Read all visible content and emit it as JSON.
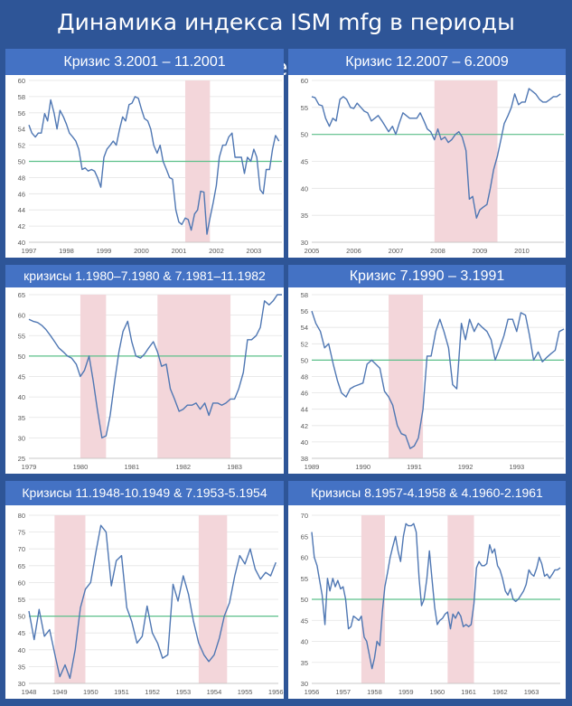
{
  "title": "Динамика индекса ISM mfg в периоды рецессии",
  "colors": {
    "background": "#2e5597",
    "header": "#4472c4",
    "line": "#4f77b3",
    "ref_line": "#5cc08a",
    "recession": "#f3d6da",
    "grid": "#e3e3e3",
    "tick": "#595959"
  },
  "chart_data": [
    {
      "id": "c1",
      "type": "line",
      "title": "Кризис 3.2001 – 11.2001",
      "xlim": [
        1997,
        2003.75
      ],
      "ylim": [
        40,
        60
      ],
      "yticks": [
        40,
        42,
        44,
        46,
        48,
        50,
        52,
        54,
        56,
        58,
        60
      ],
      "xticks": [
        "1997",
        "1998",
        "1999",
        "2000",
        "2001",
        "2002",
        "2003"
      ],
      "reference_line": 50,
      "recession_bands": [
        [
          2001.17,
          2001.83
        ]
      ],
      "x": [
        1997.0,
        1997.08,
        1997.17,
        1997.25,
        1997.33,
        1997.42,
        1997.5,
        1997.58,
        1997.67,
        1997.75,
        1997.83,
        1997.92,
        1998.0,
        1998.08,
        1998.17,
        1998.25,
        1998.33,
        1998.42,
        1998.5,
        1998.58,
        1998.67,
        1998.75,
        1998.83,
        1998.92,
        1999.0,
        1999.08,
        1999.17,
        1999.25,
        1999.33,
        1999.42,
        1999.5,
        1999.58,
        1999.67,
        1999.75,
        1999.83,
        1999.92,
        2000.0,
        2000.08,
        2000.17,
        2000.25,
        2000.33,
        2000.42,
        2000.5,
        2000.58,
        2000.67,
        2000.75,
        2000.83,
        2000.92,
        2001.0,
        2001.08,
        2001.17,
        2001.25,
        2001.33,
        2001.42,
        2001.5,
        2001.58,
        2001.67,
        2001.75,
        2001.83,
        2001.92,
        2002.0,
        2002.08,
        2002.17,
        2002.25,
        2002.33,
        2002.42,
        2002.5,
        2002.58,
        2002.67,
        2002.75,
        2002.83,
        2002.92,
        2003.0,
        2003.08,
        2003.17,
        2003.25,
        2003.33,
        2003.42,
        2003.5,
        2003.58,
        2003.67
      ],
      "y": [
        54.5,
        53.5,
        53.0,
        53.5,
        53.5,
        55.9,
        55.0,
        57.6,
        56.0,
        54.0,
        56.3,
        55.5,
        54.6,
        53.5,
        53.0,
        52.5,
        51.5,
        49.0,
        49.2,
        48.8,
        49.0,
        48.8,
        48.0,
        46.8,
        50.5,
        51.5,
        52.0,
        52.5,
        52.0,
        54.0,
        55.5,
        55.0,
        57.0,
        57.2,
        58.0,
        57.8,
        56.5,
        55.3,
        55.0,
        54.0,
        52.0,
        51.0,
        52.0,
        50.0,
        49.0,
        48.0,
        47.8,
        44.0,
        42.5,
        42.2,
        43.0,
        42.8,
        41.5,
        43.5,
        44.0,
        46.3,
        46.2,
        41.0,
        43.0,
        45.0,
        47.0,
        50.5,
        52.0,
        52.0,
        53.0,
        53.5,
        50.5,
        50.5,
        50.5,
        48.5,
        50.5,
        50.0,
        51.5,
        50.5,
        46.5,
        46.0,
        49.0,
        49.0,
        51.5,
        53.2,
        52.5
      ]
    },
    {
      "id": "c2",
      "type": "line",
      "title": "Кризис 12.2007 – 6.2009",
      "xlim": [
        2005,
        2011
      ],
      "ylim": [
        30,
        60
      ],
      "yticks": [
        30,
        35,
        40,
        45,
        50,
        55,
        60
      ],
      "xticks": [
        "2005",
        "2006",
        "2007",
        "2008",
        "2009",
        "2010"
      ],
      "reference_line": 50,
      "recession_bands": [
        [
          2007.92,
          2009.42
        ]
      ],
      "x": [
        2005.0,
        2005.08,
        2005.17,
        2005.25,
        2005.33,
        2005.42,
        2005.5,
        2005.58,
        2005.67,
        2005.75,
        2005.83,
        2005.92,
        2006.0,
        2006.08,
        2006.17,
        2006.25,
        2006.33,
        2006.42,
        2006.5,
        2006.58,
        2006.67,
        2006.75,
        2006.83,
        2006.92,
        2007.0,
        2007.08,
        2007.17,
        2007.25,
        2007.33,
        2007.42,
        2007.5,
        2007.58,
        2007.67,
        2007.75,
        2007.83,
        2007.92,
        2008.0,
        2008.08,
        2008.17,
        2008.25,
        2008.33,
        2008.42,
        2008.5,
        2008.58,
        2008.67,
        2008.75,
        2008.83,
        2008.92,
        2009.0,
        2009.08,
        2009.17,
        2009.25,
        2009.33,
        2009.42,
        2009.5,
        2009.58,
        2009.67,
        2009.75,
        2009.83,
        2009.92,
        2010.0,
        2010.08,
        2010.17,
        2010.25,
        2010.33,
        2010.42,
        2010.5,
        2010.58,
        2010.67,
        2010.75,
        2010.83,
        2010.92
      ],
      "y": [
        57.0,
        56.8,
        55.5,
        55.3,
        53.0,
        51.5,
        53.0,
        52.5,
        56.5,
        57.0,
        56.5,
        55.0,
        54.8,
        55.8,
        55.0,
        54.3,
        54.0,
        52.5,
        53.0,
        53.5,
        52.5,
        51.5,
        50.5,
        51.5,
        50.0,
        52.0,
        54.0,
        53.5,
        53.0,
        53.0,
        53.0,
        54.0,
        52.5,
        51.0,
        50.5,
        49.0,
        51.0,
        49.0,
        49.5,
        48.5,
        49.0,
        50.0,
        50.5,
        49.5,
        47.0,
        38.0,
        38.5,
        34.5,
        36.0,
        36.5,
        37.0,
        40.0,
        43.5,
        46.0,
        49.0,
        52.0,
        53.5,
        55.0,
        57.5,
        55.5,
        56.0,
        56.0,
        58.5,
        58.0,
        57.5,
        56.5,
        56.0,
        56.0,
        56.5,
        57.0,
        57.0,
        57.5
      ]
    },
    {
      "id": "c3",
      "type": "line",
      "title": "кризисы 1.1980–7.1980 & 7.1981–11.1982",
      "xlim": [
        1979,
        1983.92
      ],
      "ylim": [
        25,
        65
      ],
      "yticks": [
        25,
        30,
        35,
        40,
        45,
        50,
        55,
        60,
        65
      ],
      "xticks": [
        "1979",
        "1980",
        "1981",
        "1982",
        "1983"
      ],
      "reference_line": 50,
      "recession_bands": [
        [
          1980.0,
          1980.5
        ],
        [
          1981.5,
          1982.92
        ]
      ],
      "x": [
        1979.0,
        1979.08,
        1979.17,
        1979.25,
        1979.33,
        1979.42,
        1979.5,
        1979.58,
        1979.67,
        1979.75,
        1979.83,
        1979.92,
        1980.0,
        1980.08,
        1980.17,
        1980.25,
        1980.33,
        1980.42,
        1980.5,
        1980.58,
        1980.67,
        1980.75,
        1980.83,
        1980.92,
        1981.0,
        1981.08,
        1981.17,
        1981.25,
        1981.33,
        1981.42,
        1981.5,
        1981.58,
        1981.67,
        1981.75,
        1981.83,
        1981.92,
        1982.0,
        1982.08,
        1982.17,
        1982.25,
        1982.33,
        1982.42,
        1982.5,
        1982.58,
        1982.67,
        1982.75,
        1982.83,
        1982.92,
        1983.0,
        1983.08,
        1983.17,
        1983.25,
        1983.33,
        1983.42,
        1983.5,
        1983.58,
        1983.67,
        1983.75,
        1983.83,
        1983.92
      ],
      "y": [
        59.0,
        58.5,
        58.2,
        57.5,
        56.5,
        55.0,
        53.5,
        52.0,
        51.0,
        50.0,
        49.5,
        48.0,
        45.0,
        46.5,
        50.0,
        44.0,
        37.0,
        30.0,
        30.5,
        35.5,
        44.0,
        51.0,
        56.0,
        58.5,
        53.5,
        50.0,
        49.5,
        50.5,
        52.0,
        53.5,
        51.0,
        47.5,
        48.0,
        42.0,
        39.5,
        36.5,
        37.0,
        38.0,
        38.0,
        38.5,
        37.0,
        38.5,
        35.5,
        38.5,
        38.5,
        38.0,
        38.5,
        39.5,
        39.5,
        42.0,
        46.0,
        54.0,
        54.0,
        55.0,
        57.0,
        63.5,
        62.5,
        63.5,
        65.0,
        65.0
      ]
    },
    {
      "id": "c4",
      "type": "line",
      "title": "Кризис 7.1990 – 3.1991",
      "xlim": [
        1989,
        1993.92
      ],
      "ylim": [
        38,
        58
      ],
      "yticks": [
        38,
        40,
        42,
        44,
        46,
        48,
        50,
        52,
        54,
        56,
        58
      ],
      "xticks": [
        "1989",
        "1990",
        "1991",
        "1992",
        "1993"
      ],
      "reference_line": 50,
      "recession_bands": [
        [
          1990.5,
          1991.17
        ]
      ],
      "x": [
        1989.0,
        1989.08,
        1989.17,
        1989.25,
        1989.33,
        1989.42,
        1989.5,
        1989.58,
        1989.67,
        1989.75,
        1989.83,
        1989.92,
        1990.0,
        1990.08,
        1990.17,
        1990.25,
        1990.33,
        1990.42,
        1990.5,
        1990.58,
        1990.67,
        1990.75,
        1990.83,
        1990.92,
        1991.0,
        1991.08,
        1991.17,
        1991.25,
        1991.33,
        1991.42,
        1991.5,
        1991.58,
        1991.67,
        1991.75,
        1991.83,
        1991.92,
        1992.0,
        1992.08,
        1992.17,
        1992.25,
        1992.33,
        1992.42,
        1992.5,
        1992.58,
        1992.67,
        1992.75,
        1992.83,
        1992.92,
        1993.0,
        1993.08,
        1993.17,
        1993.25,
        1993.33,
        1993.42,
        1993.5,
        1993.58,
        1993.67,
        1993.75,
        1993.83,
        1993.92
      ],
      "y": [
        56.0,
        54.5,
        53.5,
        51.5,
        52.0,
        49.5,
        47.5,
        46.0,
        45.5,
        46.5,
        46.8,
        47.0,
        47.2,
        49.5,
        50.0,
        49.5,
        49.0,
        46.2,
        45.5,
        44.5,
        42.0,
        41.0,
        40.8,
        39.2,
        39.5,
        40.5,
        44.0,
        50.5,
        50.5,
        53.5,
        55.0,
        53.5,
        51.5,
        47.0,
        46.5,
        54.5,
        52.5,
        55.0,
        53.5,
        54.5,
        54.0,
        53.5,
        52.5,
        50.0,
        51.5,
        53.0,
        55.0,
        55.0,
        53.5,
        55.8,
        55.5,
        53.0,
        50.0,
        51.0,
        49.8,
        50.3,
        50.8,
        51.2,
        53.5,
        53.8
      ]
    },
    {
      "id": "c5",
      "type": "line",
      "title": "Кризисы 11.1948-10.1949 & 7.1953-5.1954",
      "xlim": [
        1948,
        1956.08
      ],
      "ylim": [
        30,
        80
      ],
      "yticks": [
        30,
        35,
        40,
        45,
        50,
        55,
        60,
        65,
        70,
        75,
        80
      ],
      "xticks": [
        "1948",
        "1949",
        "1950",
        "1951",
        "1952",
        "1953",
        "1954",
        "1955",
        "1956"
      ],
      "reference_line": 50,
      "recession_bands": [
        [
          1948.83,
          1949.83
        ],
        [
          1953.5,
          1954.42
        ]
      ],
      "x": [
        1948.0,
        1948.17,
        1948.33,
        1948.5,
        1948.67,
        1948.83,
        1949.0,
        1949.17,
        1949.33,
        1949.5,
        1949.67,
        1949.83,
        1950.0,
        1950.17,
        1950.33,
        1950.5,
        1950.67,
        1950.83,
        1951.0,
        1951.17,
        1951.33,
        1951.5,
        1951.67,
        1951.83,
        1952.0,
        1952.17,
        1952.33,
        1952.5,
        1952.67,
        1952.83,
        1953.0,
        1953.17,
        1953.33,
        1953.5,
        1953.67,
        1953.83,
        1954.0,
        1954.17,
        1954.33,
        1954.5,
        1954.67,
        1954.83,
        1955.0,
        1955.17,
        1955.33,
        1955.5,
        1955.67,
        1955.83,
        1956.0
      ],
      "y": [
        51.5,
        43.0,
        52.0,
        44.0,
        46.0,
        39.0,
        32.0,
        35.5,
        31.5,
        40.0,
        52.5,
        58.0,
        60.0,
        69.0,
        77.0,
        75.0,
        59.0,
        66.5,
        68.0,
        52.5,
        48.5,
        42.0,
        44.0,
        53.0,
        45.0,
        42.0,
        37.5,
        38.5,
        59.5,
        54.5,
        62.0,
        56.5,
        48.5,
        42.0,
        38.5,
        36.5,
        38.5,
        43.5,
        50.0,
        54.0,
        62.0,
        68.0,
        65.5,
        70.0,
        64.0,
        61.0,
        63.0,
        62.0,
        66.0
      ]
    },
    {
      "id": "c6",
      "type": "line",
      "title": "Кризисы 8.1957-4.1958 & 4.1960-2.1961",
      "xlim": [
        1956,
        1963.92
      ],
      "ylim": [
        30,
        70
      ],
      "yticks": [
        30,
        35,
        40,
        45,
        50,
        55,
        60,
        65,
        70
      ],
      "xticks": [
        "1956",
        "1957",
        "1958",
        "1959",
        "1960",
        "1961",
        "1962",
        "1963"
      ],
      "reference_line": 50,
      "recession_bands": [
        [
          1957.58,
          1958.33
        ],
        [
          1960.33,
          1961.17
        ]
      ],
      "x": [
        1956.0,
        1956.08,
        1956.17,
        1956.25,
        1956.33,
        1956.42,
        1956.5,
        1956.58,
        1956.67,
        1956.75,
        1956.83,
        1956.92,
        1957.0,
        1957.08,
        1957.17,
        1957.25,
        1957.33,
        1957.42,
        1957.5,
        1957.58,
        1957.67,
        1957.75,
        1957.83,
        1957.92,
        1958.0,
        1958.08,
        1958.17,
        1958.25,
        1958.33,
        1958.42,
        1958.5,
        1958.58,
        1958.67,
        1958.75,
        1958.83,
        1958.92,
        1959.0,
        1959.08,
        1959.17,
        1959.25,
        1959.33,
        1959.42,
        1959.5,
        1959.58,
        1959.67,
        1959.75,
        1959.83,
        1959.92,
        1960.0,
        1960.08,
        1960.17,
        1960.25,
        1960.33,
        1960.42,
        1960.5,
        1960.58,
        1960.67,
        1960.75,
        1960.83,
        1960.92,
        1961.0,
        1961.08,
        1961.17,
        1961.25,
        1961.33,
        1961.42,
        1961.5,
        1961.58,
        1961.67,
        1961.75,
        1961.83,
        1961.92,
        1962.0,
        1962.08,
        1962.17,
        1962.25,
        1962.33,
        1962.42,
        1962.5,
        1962.58,
        1962.67,
        1962.75,
        1962.83,
        1962.92,
        1963.0,
        1963.08,
        1963.17,
        1963.25,
        1963.33,
        1963.42,
        1963.5,
        1963.58,
        1963.67,
        1963.75,
        1963.83,
        1963.92
      ],
      "y": [
        66.0,
        60.0,
        58.0,
        54.5,
        51.0,
        44.0,
        55.0,
        52.0,
        55.0,
        53.0,
        54.5,
        52.5,
        53.0,
        50.0,
        43.0,
        43.5,
        46.0,
        45.5,
        45.0,
        46.0,
        41.0,
        40.0,
        37.0,
        33.5,
        36.0,
        40.0,
        39.0,
        47.0,
        53.0,
        56.5,
        60.0,
        62.5,
        65.0,
        61.5,
        59.0,
        65.0,
        68.0,
        67.5,
        67.5,
        68.0,
        66.0,
        55.0,
        48.5,
        50.0,
        55.0,
        61.5,
        55.0,
        48.0,
        44.0,
        45.0,
        45.5,
        46.5,
        47.0,
        43.0,
        46.5,
        45.5,
        47.0,
        46.0,
        43.5,
        44.0,
        43.5,
        44.0,
        49.0,
        57.5,
        59.0,
        58.0,
        58.0,
        58.5,
        63.0,
        61.0,
        62.0,
        58.0,
        57.0,
        55.0,
        52.0,
        51.0,
        52.5,
        50.0,
        49.5,
        50.0,
        51.0,
        52.0,
        53.5,
        57.0,
        56.0,
        55.5,
        57.5,
        60.0,
        58.5,
        55.5,
        56.0,
        55.0,
        56.0,
        57.0,
        57.0,
        57.5
      ]
    }
  ]
}
